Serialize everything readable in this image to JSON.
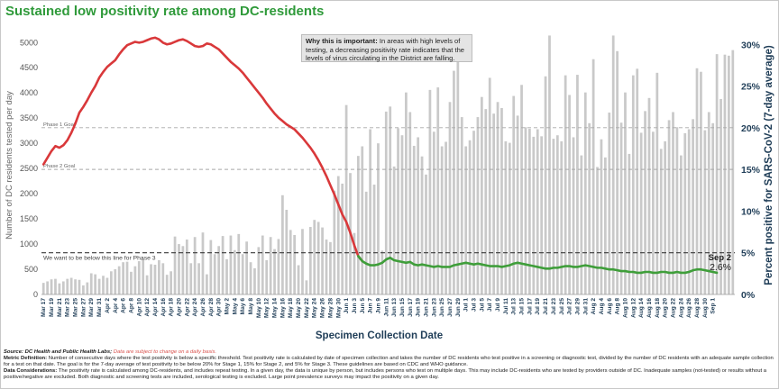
{
  "title": "Sustained low positivity rate among DC-residents",
  "callout": {
    "heading": "Why this is important:",
    "body": " In areas with high levels of testing, a decreasing positivity rate indicates that the levels of virus circulating in the District are falling."
  },
  "footer": {
    "source_label": "Source: DC Health and Public Health Labs;",
    "source_warning": " Data are subject to change on a daily basis.",
    "metric_label": "Metric Definition:",
    "metric_text": " Number of consecutive days where the test positivity is below a specific threshold. Test positivity rate is calculated by date of specimen collection and takes the number of DC residents who test positive in a screening or diagnostic test, divided by the number of DC residents with an adequate sample collection for a test on that date. The goal is for the 7-day average of test positivity to be below 20% for Stage 1, 15% for Stage 2, and 5% for Stage 3. These guidelines are based on CDC and WHO guidance.",
    "data_label": "Data Considerations:",
    "data_text": " The positivity rate is calculated among DC-residents, and includes repeat testing. In a given day, the data is unique by person, but includes persons who test on multiple days. This may include DC-residents who are tested by providers outside of DC. Inadequate samples (not-tested) or results without a positive/negative are excluded. Both diagnostic and screening tests are included, serological testing is excluded. Large point prevalence surveys may impact the positivity on a given day."
  },
  "colors": {
    "title": "#2f9a3a",
    "bars": "#c9c9c9",
    "line_high": "#d9383a",
    "line_low": "#3f9e3a",
    "reference": "#555555"
  },
  "chart_data": {
    "type": "bar+line",
    "xlabel": "Specimen Collection Date",
    "ylabel_left": "Number of DC residents tested per day",
    "ylabel_right": "Percent positive for SARS-CoV-2 (7-day average)",
    "ylim_left": [
      0,
      5000
    ],
    "ylim_right": [
      0,
      30
    ],
    "yticks_left": [
      "0",
      "500",
      "1000",
      "1500",
      "2000",
      "2500",
      "3000",
      "3500",
      "4000",
      "4500",
      "5000"
    ],
    "yticks_right": [
      "0%",
      "5%",
      "10%",
      "15%",
      "20%",
      "25%",
      "30%"
    ],
    "x_tick_labels": [
      "Mar 17",
      "Mar 19",
      "Mar 21",
      "Mar 23",
      "Mar 25",
      "Mar 27",
      "Mar 29",
      "Mar 31",
      "Apr 2",
      "Apr 4",
      "Apr 6",
      "Apr 8",
      "Apr 10",
      "Apr 12",
      "Apr 14",
      "Apr 16",
      "Apr 18",
      "Apr 20",
      "Apr 22",
      "Apr 24",
      "Apr 26",
      "Apr 28",
      "Apr 30",
      "May 2",
      "May 4",
      "May 6",
      "May 8",
      "May 10",
      "May 12",
      "May 14",
      "May 16",
      "May 18",
      "May 20",
      "May 22",
      "May 24",
      "May 26",
      "May 28",
      "May 30",
      "Jun 1",
      "Jun 3",
      "Jun 5",
      "Jun 7",
      "Jun 9",
      "Jun 11",
      "Jun 13",
      "Jun 15",
      "Jun 17",
      "Jun 19",
      "Jun 21",
      "Jun 23",
      "Jun 25",
      "Jun 27",
      "Jun 29",
      "Jul 1",
      "Jul 3",
      "Jul 5",
      "Jul 7",
      "Jul 9",
      "Jul 11",
      "Jul 13",
      "Jul 15",
      "Jul 17",
      "Jul 19",
      "Jul 21",
      "Jul 23",
      "Jul 25",
      "Jul 27",
      "Jul 29",
      "Jul 31",
      "Aug 2",
      "Aug 4",
      "Aug 6",
      "Aug 8",
      "Aug 10",
      "Aug 12",
      "Aug 14",
      "Aug 16",
      "Aug 18",
      "Aug 20",
      "Aug 22",
      "Aug 24",
      "Aug 26",
      "Aug 28",
      "Aug 30",
      "Sep 1"
    ],
    "reference_lines": [
      {
        "label": "Phase 1 Goal",
        "value_pct": 20
      },
      {
        "label": "Phase 2 Goal",
        "value_pct": 15
      },
      {
        "label": "We want to be below this line for Phase 3",
        "value_pct": 5
      }
    ],
    "annotation": {
      "date": "Sep 2",
      "value": "2.6%"
    },
    "series": [
      {
        "kind": "bar",
        "axis": "left",
        "values": [
          230,
          260,
          300,
          310,
          220,
          260,
          310,
          330,
          300,
          290,
          180,
          240,
          420,
          400,
          310,
          370,
          330,
          460,
          500,
          560,
          640,
          650,
          450,
          560,
          660,
          710,
          380,
          600,
          590,
          680,
          620,
          390,
          460,
          1150,
          1000,
          960,
          1090,
          620,
          1140,
          620,
          1230,
          400,
          1080,
          800,
          960,
          1160,
          700,
          1170,
          880,
          1200,
          800,
          1050,
          640,
          520,
          940,
          1170,
          680,
          1140,
          900,
          1100,
          1970,
          1680,
          1280,
          1180,
          580,
          1300,
          280,
          1340,
          1480,
          1440,
          1330,
          1090,
          1040,
          2060,
          2350,
          2200,
          3760,
          2410,
          1220,
          2750,
          2940,
          2040,
          3280,
          2180,
          3000,
          870,
          3630,
          3730,
          2540,
          3300,
          3160,
          4010,
          3620,
          2950,
          3120,
          2740,
          2380,
          4060,
          3230,
          4110,
          2940,
          3030,
          3820,
          4440,
          4950,
          3520,
          2940,
          3060,
          3250,
          3520,
          3920,
          3680,
          4300,
          3590,
          3820,
          3700,
          3040,
          3010,
          3940,
          3550,
          4160,
          3320,
          3290,
          3130,
          3280,
          3140,
          4330,
          5140,
          3090,
          3160,
          3040,
          4350,
          3960,
          3120,
          4360,
          2760,
          4010,
          3400,
          4670,
          2530,
          3080,
          2720,
          3610,
          5140,
          4830,
          3410,
          4010,
          2790,
          4350,
          4480,
          3210,
          3640,
          3900,
          3230,
          4400,
          2890,
          3040,
          3460,
          3620,
          3320,
          2760,
          3200,
          3280,
          3480,
          4490,
          4420,
          3260,
          3620,
          3400,
          4770,
          3880,
          4760,
          4740,
          4850
        ]
      },
      {
        "kind": "line",
        "axis": "right",
        "name": "7-day average",
        "values": [
          15.6,
          16.4,
          17.2,
          17.8,
          17.6,
          17.9,
          18.5,
          19.4,
          20.5,
          21.8,
          22.5,
          23.3,
          24.2,
          25.0,
          26.0,
          26.7,
          27.3,
          27.7,
          28.1,
          28.8,
          29.4,
          29.9,
          30.1,
          30.3,
          30.2,
          30.3,
          30.5,
          30.7,
          30.8,
          30.6,
          30.2,
          30.0,
          30.1,
          30.3,
          30.5,
          30.6,
          30.4,
          30.1,
          29.8,
          29.7,
          29.8,
          30.1,
          30.0,
          29.7,
          29.4,
          28.9,
          28.4,
          27.9,
          27.5,
          27.1,
          26.6,
          26.0,
          25.4,
          24.8,
          24.2,
          23.6,
          22.9,
          22.3,
          21.7,
          21.2,
          20.8,
          20.4,
          20.1,
          19.8,
          19.3,
          18.8,
          18.2,
          17.6,
          16.9,
          16.1,
          15.2,
          14.2,
          13.1,
          12.0,
          10.8,
          9.6,
          8.7,
          7.4,
          5.9,
          4.6,
          4.0,
          3.7,
          3.5,
          3.5,
          3.6,
          3.8,
          4.2,
          4.4,
          4.1,
          4.0,
          3.9,
          3.8,
          3.9,
          3.6,
          3.5,
          3.6,
          3.5,
          3.4,
          3.3,
          3.4,
          3.3,
          3.3,
          3.3,
          3.5,
          3.6,
          3.7,
          3.8,
          3.7,
          3.6,
          3.7,
          3.6,
          3.5,
          3.4,
          3.4,
          3.4,
          3.3,
          3.4,
          3.5,
          3.7,
          3.8,
          3.7,
          3.6,
          3.5,
          3.4,
          3.3,
          3.2,
          3.1,
          3.1,
          3.2,
          3.2,
          3.3,
          3.4,
          3.4,
          3.3,
          3.3,
          3.4,
          3.5,
          3.4,
          3.3,
          3.2,
          3.2,
          3.1,
          3.0,
          3.0,
          2.9,
          2.8,
          2.8,
          2.7,
          2.7,
          2.6,
          2.6,
          2.7,
          2.7,
          2.6,
          2.6,
          2.7,
          2.7,
          2.6,
          2.6,
          2.7,
          2.6,
          2.6,
          2.7,
          2.9,
          3.0,
          3.0,
          2.9,
          2.8,
          2.7,
          2.6
        ]
      }
    ]
  }
}
